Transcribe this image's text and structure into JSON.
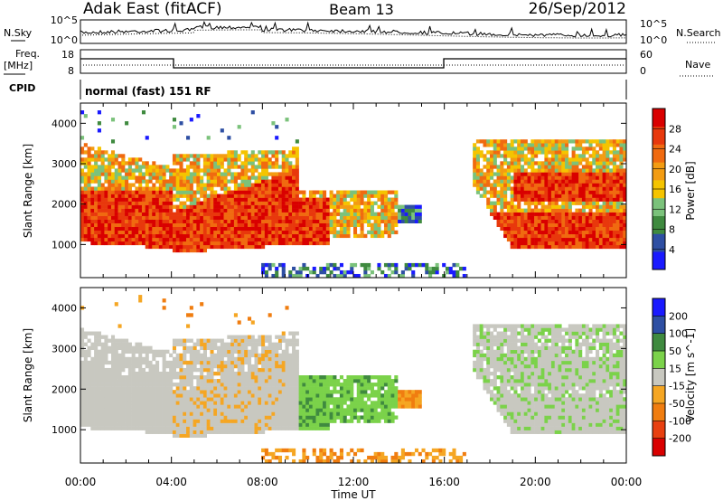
{
  "header": {
    "station": "Adak East (fitACF)",
    "beam": "Beam 13",
    "date": "26/Sep/2012"
  },
  "strips": {
    "nsky_label": "N.Sky",
    "nsearch_label": "N.Search",
    "freq_label_line1": "Freq.",
    "freq_label_line2": "[MHz]",
    "nave_label": "Nave",
    "cpid_label": "CPID",
    "noise_ticks_left": [
      "10^5",
      "10^0"
    ],
    "noise_ticks_right": [
      "10^5",
      "10^0"
    ],
    "freq_ticks": [
      "18",
      "8"
    ],
    "nave_ticks": [
      "60",
      "0"
    ],
    "cpid_text": "normal (fast) 151 RF"
  },
  "xaxis": {
    "label": "Time UT",
    "ticks": [
      "00:00",
      "04:00",
      "08:00",
      "12:00",
      "16:00",
      "20:00",
      "00:00"
    ]
  },
  "colors": {
    "power": [
      "#1a1aff",
      "#2e4fa3",
      "#3f8a3f",
      "#7bc27b",
      "#f5c400",
      "#f39c12",
      "#f06a10",
      "#e8380c",
      "#d90000"
    ],
    "velocity": [
      "#1a1aff",
      "#2e4fa3",
      "#3f8a3f",
      "#7bd24a",
      "#c8c8c0",
      "#f5a623",
      "#f07d10",
      "#e84010",
      "#d90000"
    ]
  },
  "chart_data": [
    {
      "type": "heatmap",
      "panel": "power",
      "ylabel": "Slant Range [km]",
      "xlabel": "Time UT",
      "xlim": [
        0,
        24
      ],
      "ylim": [
        180,
        4500
      ],
      "yticks": [
        "1000",
        "2000",
        "3000",
        "4000"
      ],
      "colorbar_label": "Power [dB]",
      "colorbar_ticks": [
        "28",
        "24",
        "20",
        "16",
        "12",
        "8",
        "4"
      ],
      "scale": [
        0,
        32
      ]
    },
    {
      "type": "heatmap",
      "panel": "velocity",
      "ylabel": "Slant Range [km]",
      "xlabel": "Time UT",
      "xlim": [
        0,
        24
      ],
      "ylim": [
        180,
        4500
      ],
      "yticks": [
        "1000",
        "2000",
        "3000",
        "4000"
      ],
      "colorbar_label": "Velocity [m s^-1]",
      "colorbar_ticks": [
        "200",
        "100",
        "50",
        "15",
        "-15",
        "-50",
        "-100",
        "-200"
      ],
      "scale": [
        -250,
        250
      ]
    }
  ]
}
